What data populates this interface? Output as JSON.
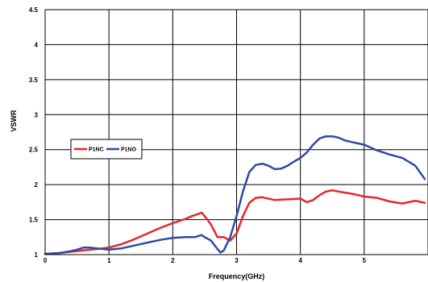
{
  "chart_data": {
    "type": "line",
    "title": "",
    "xlabel": "Frequency(GHz)",
    "ylabel": "VSWR",
    "xlim": [
      0,
      6
    ],
    "ylim": [
      1,
      4.5
    ],
    "xticks": [
      "0",
      "1",
      "2",
      "3",
      "4",
      "5"
    ],
    "yticks": [
      "1",
      "1.5",
      "2",
      "2.5",
      "3",
      "3.5",
      "4",
      "4.5"
    ],
    "grid": true,
    "legend": "left",
    "series": [
      {
        "name": "P1NC",
        "color": "#e8262a",
        "x": [
          0,
          0.2,
          0.4,
          0.6,
          0.8,
          1.0,
          1.2,
          1.4,
          1.6,
          1.8,
          2.0,
          2.2,
          2.3,
          2.4,
          2.45,
          2.5,
          2.6,
          2.7,
          2.8,
          2.9,
          3.0,
          3.1,
          3.2,
          3.3,
          3.4,
          3.6,
          3.8,
          4.0,
          4.1,
          4.2,
          4.3,
          4.4,
          4.5,
          4.6,
          4.8,
          5.0,
          5.2,
          5.4,
          5.6,
          5.8,
          5.95
        ],
        "y": [
          1.01,
          1.02,
          1.04,
          1.06,
          1.08,
          1.1,
          1.15,
          1.22,
          1.3,
          1.38,
          1.45,
          1.51,
          1.55,
          1.58,
          1.6,
          1.55,
          1.43,
          1.25,
          1.25,
          1.2,
          1.3,
          1.55,
          1.74,
          1.81,
          1.82,
          1.78,
          1.79,
          1.8,
          1.75,
          1.78,
          1.85,
          1.9,
          1.92,
          1.9,
          1.87,
          1.83,
          1.81,
          1.76,
          1.73,
          1.77,
          1.74
        ]
      },
      {
        "name": "P1NO",
        "color": "#2e4aa0",
        "x": [
          0,
          0.2,
          0.4,
          0.5,
          0.6,
          0.7,
          0.8,
          1.0,
          1.2,
          1.4,
          1.6,
          1.8,
          2.0,
          2.2,
          2.35,
          2.45,
          2.5,
          2.6,
          2.7,
          2.75,
          2.8,
          2.9,
          3.0,
          3.1,
          3.2,
          3.3,
          3.4,
          3.5,
          3.6,
          3.7,
          3.8,
          3.9,
          4.0,
          4.1,
          4.2,
          4.3,
          4.4,
          4.5,
          4.6,
          4.7,
          4.8,
          5.0,
          5.2,
          5.4,
          5.6,
          5.8,
          5.95
        ],
        "y": [
          1.01,
          1.02,
          1.05,
          1.07,
          1.1,
          1.1,
          1.09,
          1.07,
          1.09,
          1.13,
          1.17,
          1.21,
          1.24,
          1.25,
          1.25,
          1.28,
          1.25,
          1.2,
          1.08,
          1.03,
          1.06,
          1.25,
          1.55,
          1.9,
          2.18,
          2.28,
          2.3,
          2.27,
          2.22,
          2.23,
          2.27,
          2.33,
          2.38,
          2.46,
          2.57,
          2.66,
          2.69,
          2.69,
          2.67,
          2.63,
          2.61,
          2.57,
          2.49,
          2.43,
          2.38,
          2.27,
          2.08
        ]
      }
    ]
  }
}
